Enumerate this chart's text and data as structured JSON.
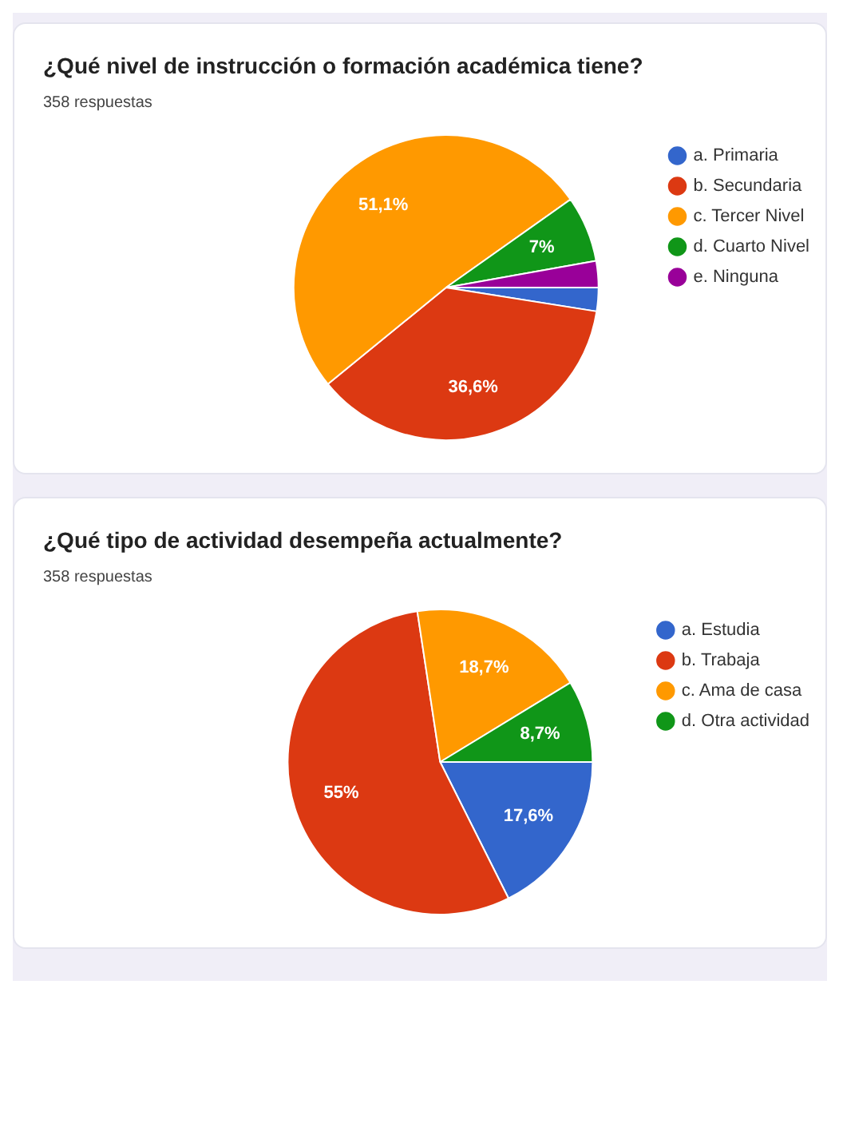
{
  "chart_data": [
    {
      "type": "pie",
      "title": "¿Qué nivel de instrucción o formación académica tiene?",
      "subtitle": "358 respuestas",
      "categories": [
        "a. Primaria",
        "b. Secundaria",
        "c. Tercer Nivel",
        "d. Cuarto Nivel",
        "e. Ninguna"
      ],
      "values": [
        2.5,
        36.6,
        51.1,
        7,
        2.8
      ],
      "colors": [
        "#3366cc",
        "#dc3912",
        "#ff9900",
        "#109618",
        "#990099"
      ],
      "value_labels": [
        null,
        "36,6%",
        "51,1%",
        "7%",
        null
      ],
      "legend": "right"
    },
    {
      "type": "pie",
      "title": "¿Qué tipo de actividad desempeña actualmente?",
      "subtitle": "358 respuestas",
      "categories": [
        "a. Estudia",
        "b. Trabaja",
        "c. Ama de casa",
        "d. Otra actividad"
      ],
      "values": [
        17.6,
        55,
        18.7,
        8.7
      ],
      "colors": [
        "#3366cc",
        "#dc3912",
        "#ff9900",
        "#109618"
      ],
      "value_labels": [
        "17,6%",
        "55%",
        "18,7%",
        "8,7%"
      ],
      "legend": "right"
    }
  ]
}
